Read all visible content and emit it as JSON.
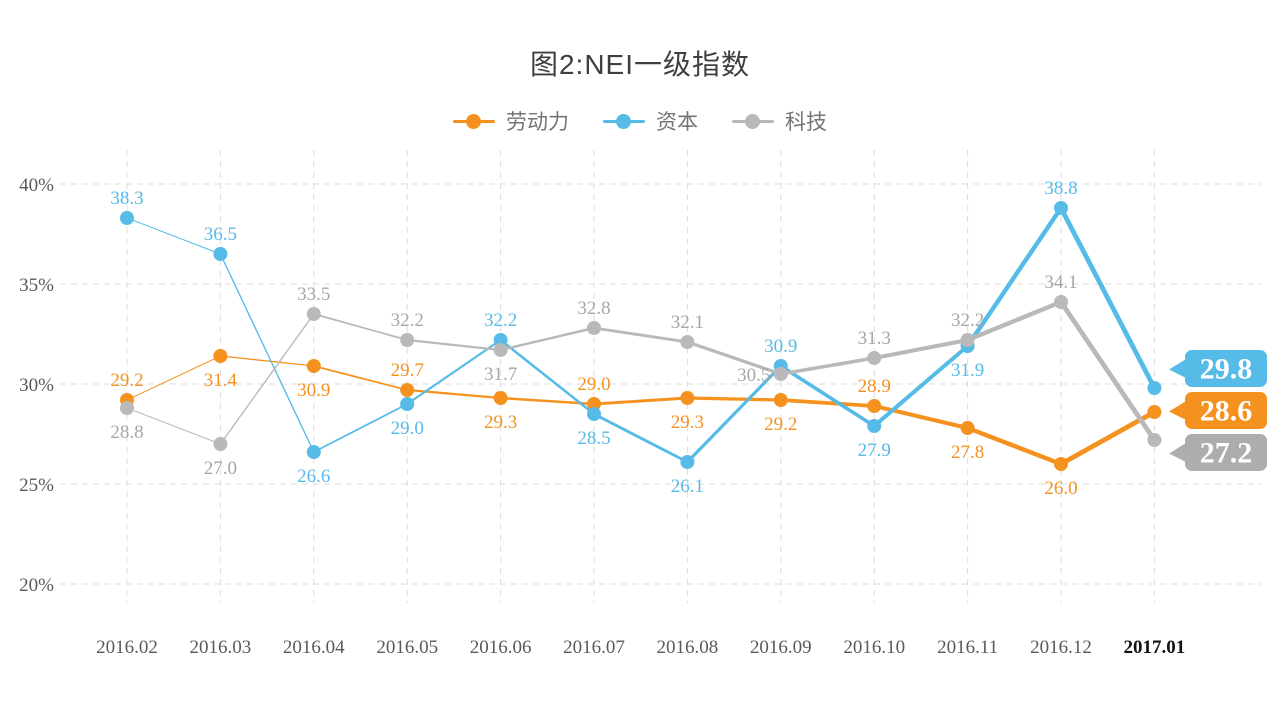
{
  "chart_data": {
    "type": "line",
    "title": "图2:NEI一级指数",
    "categories": [
      "2016.02",
      "2016.03",
      "2016.04",
      "2016.05",
      "2016.06",
      "2016.07",
      "2016.08",
      "2016.09",
      "2016.10",
      "2016.11",
      "2016.12",
      "2017.01"
    ],
    "series": [
      {
        "name": "劳动力",
        "color": "#F5921F",
        "label_color": "#F5921F",
        "values": [
          29.2,
          31.4,
          30.9,
          29.7,
          29.3,
          29.0,
          29.3,
          29.2,
          28.9,
          27.8,
          26.0,
          28.6
        ],
        "label_pos": [
          "above",
          "below",
          "below",
          "above",
          "below",
          "above",
          "below",
          "below",
          "above",
          "below",
          "below",
          "callout"
        ]
      },
      {
        "name": "资本",
        "color": "#56BBE7",
        "label_color": "#56BBE7",
        "values": [
          38.3,
          36.5,
          26.6,
          29.0,
          32.2,
          28.5,
          26.1,
          30.9,
          27.9,
          31.9,
          38.8,
          29.8
        ],
        "label_pos": [
          "above",
          "above",
          "below",
          "below",
          "above",
          "below",
          "below",
          "above",
          "below",
          "below",
          "above",
          "callout"
        ]
      },
      {
        "name": "科技",
        "color": "#B9B9B9",
        "label_color": "#A6A6A6",
        "values": [
          28.8,
          27.0,
          33.5,
          32.2,
          31.7,
          32.8,
          32.1,
          30.5,
          31.3,
          32.2,
          34.1,
          27.2
        ],
        "label_pos": [
          "below",
          "below",
          "above",
          "above",
          "below",
          "above",
          "above",
          "left",
          "above",
          "above",
          "above",
          "callout"
        ]
      }
    ],
    "y_ticks": [
      "40%",
      "35%",
      "30%",
      "25%",
      "20%"
    ],
    "y_tick_values": [
      40,
      35,
      30,
      25,
      20
    ],
    "ylim": [
      20,
      40
    ],
    "grid": "dashed",
    "legend_position": "top",
    "x_axis_emphasis": "2017.01",
    "end_callouts": [
      {
        "series": "资本",
        "label": "29.8",
        "color": "#56BBE7"
      },
      {
        "series": "劳动力",
        "label": "28.6",
        "color": "#F5921F"
      },
      {
        "series": "科技",
        "label": "27.2",
        "color": "#ADADAD"
      }
    ]
  }
}
